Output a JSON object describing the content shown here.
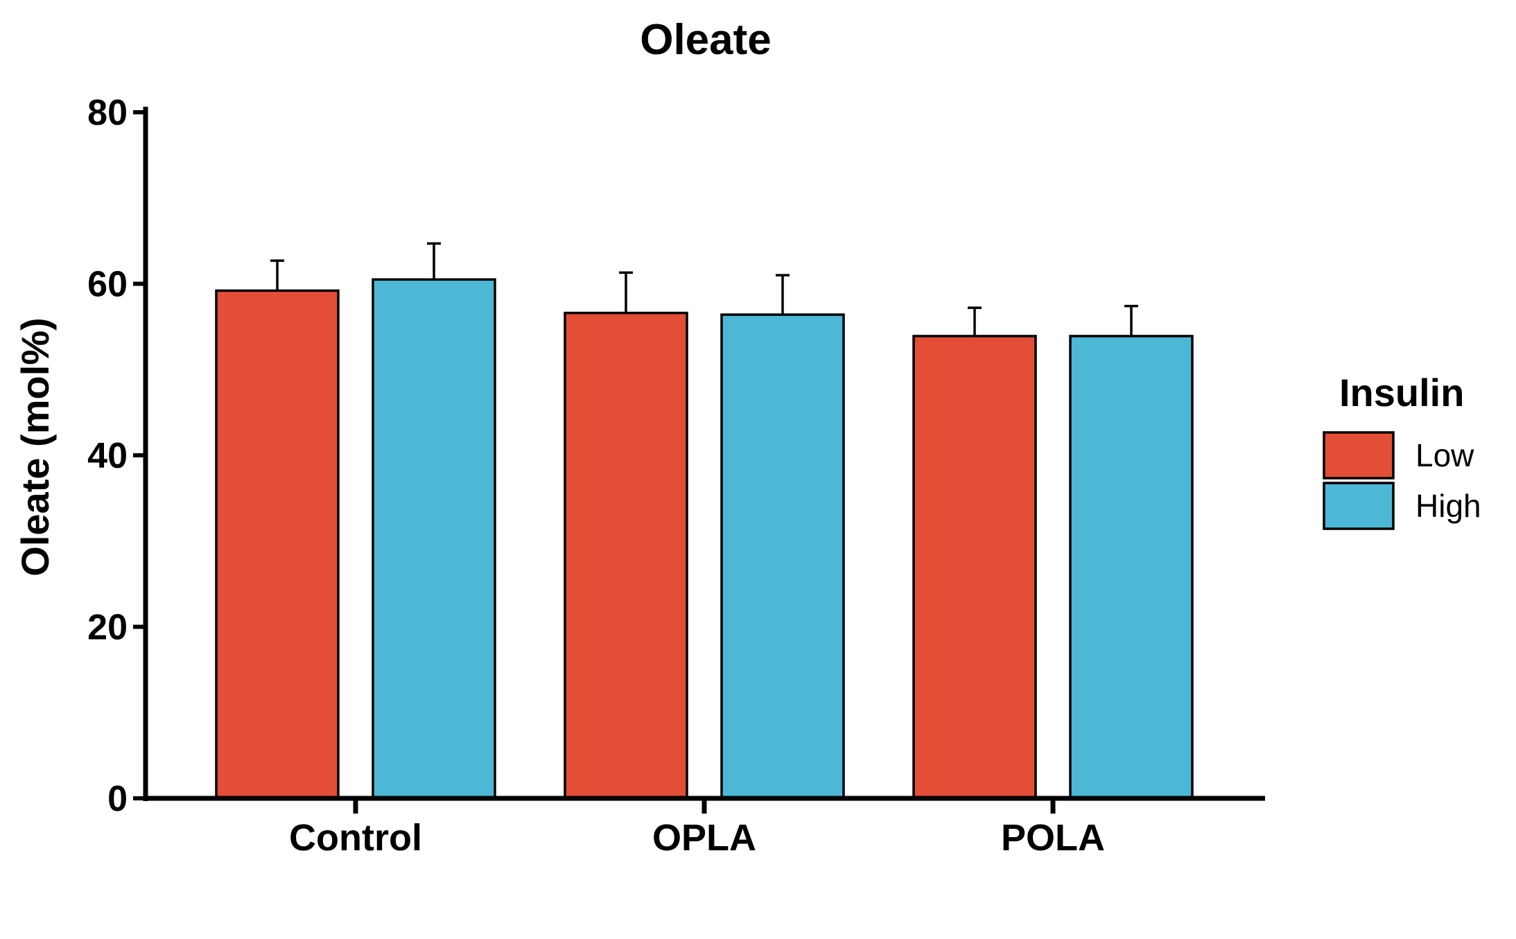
{
  "chart_data": {
    "type": "bar",
    "title": "Oleate",
    "xlabel": "",
    "ylabel": "Oleate (mol%)",
    "ylim": [
      0,
      80
    ],
    "yticks": [
      0,
      20,
      40,
      60,
      80
    ],
    "grid": false,
    "categories": [
      "Control",
      "OPLA",
      "POLA"
    ],
    "series": [
      {
        "name": "Low",
        "color": "#E44D36",
        "values": [
          59.2,
          56.6,
          53.9
        ],
        "errors": [
          3.5,
          4.7,
          3.3
        ]
      },
      {
        "name": "High",
        "color": "#4DB8D6",
        "values": [
          60.5,
          56.4,
          53.9
        ],
        "errors": [
          4.2,
          4.6,
          3.5
        ]
      }
    ],
    "legend": {
      "title": "Insulin",
      "position": "right"
    }
  }
}
